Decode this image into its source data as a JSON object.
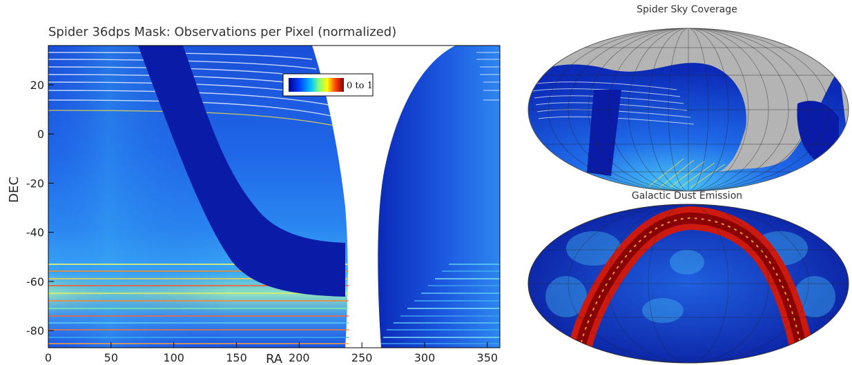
{
  "chart_data": [
    {
      "type": "heatmap",
      "title": "Spider 36dps Mask:  Observations per Pixel (normalized)",
      "xlabel": "RA",
      "ylabel": "DEC",
      "xlim": [
        0,
        360
      ],
      "ylim": [
        -87,
        36
      ],
      "xticks": [
        "0",
        "50",
        "100",
        "150",
        "200",
        "250",
        "300",
        "350"
      ],
      "xtick_values": [
        0,
        50,
        100,
        150,
        200,
        250,
        300,
        350
      ],
      "yticks": [
        "20",
        "0",
        "-20",
        "-40",
        "-60",
        "-80"
      ],
      "ytick_values": [
        20,
        0,
        -20,
        -40,
        -60,
        -80
      ],
      "legend": {
        "label": "0 to 1",
        "position": "top-center"
      },
      "colormap": [
        "#00008f",
        "#0000ff",
        "#0080ff",
        "#00ffff",
        "#80ff80",
        "#ffff00",
        "#ff8000",
        "#ff0000",
        "#800000"
      ]
    },
    {
      "type": "heatmap",
      "title": "Spider Sky Coverage",
      "projection": "mollweide"
    },
    {
      "type": "heatmap",
      "title": "Galactic Dust Emission",
      "projection": "mollweide"
    }
  ],
  "colors": {
    "background": "#ffffff",
    "low": "#0a1aa8",
    "mid": "#1e5fe0",
    "high": "#e02a10",
    "grey_mask": "#b4b4b4"
  }
}
